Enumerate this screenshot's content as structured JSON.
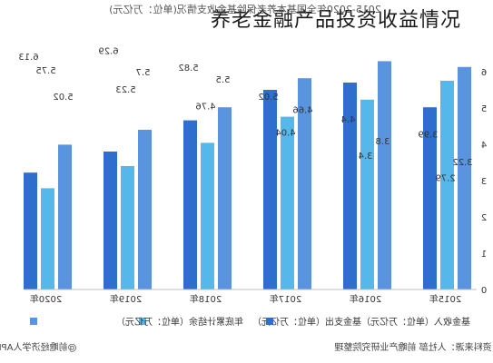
{
  "headline": "养老金融产品投资收益情况",
  "chart_data": {
    "type": "bar",
    "title": "2015-2020年全国基本养老保险基金收支情况(单位：万亿元)",
    "categories": [
      "2020年",
      "2019年",
      "2018年",
      "2017年",
      "2016年",
      "2015年"
    ],
    "series": [
      {
        "name": "基金收入（单位：万亿元）",
        "color": "#5a94e0",
        "values": [
          6.13,
          6.29,
          5.82,
          5.02,
          4.4,
          3.99
        ],
        "labels": [
          "6.13",
          "6.29",
          "5.82",
          "5.02",
          "4.4",
          "3.99"
        ]
      },
      {
        "name": "基金支出（单位：万亿元）",
        "color": "#56b7ea",
        "values": [
          5.75,
          5.23,
          4.76,
          4.04,
          3.4,
          2.79
        ],
        "labels": [
          "5.75",
          "5.23",
          "4.76",
          "4.04",
          "3.4",
          "2.79"
        ]
      },
      {
        "name": "年底累计结余（单位：万亿元）",
        "color": "#2e6fce",
        "values": [
          5.02,
          5.7,
          5.5,
          4.66,
          3.8,
          3.22
        ],
        "labels": [
          "5.02",
          "5.7",
          "5.5",
          "4.66",
          "3.8",
          "3.22"
        ]
      }
    ],
    "yticks": [
      "0",
      "1",
      "2",
      "3",
      "4",
      "5",
      "6"
    ],
    "ylim": [
      0,
      6.8
    ],
    "grid": false,
    "legend": "bottom"
  },
  "source_note": "资料来源：人社部 前瞻产业研究院整理",
  "watermark": "@前瞻经济学人APP"
}
